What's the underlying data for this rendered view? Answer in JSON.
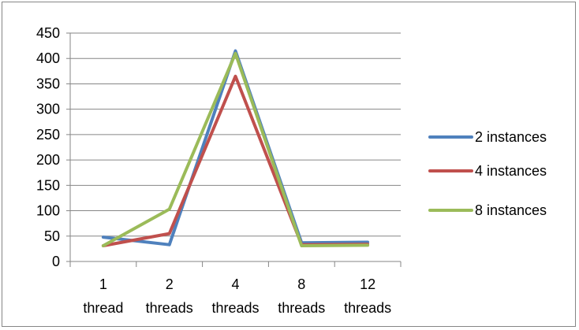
{
  "chart_data": {
    "type": "line",
    "title": "",
    "xlabel": "",
    "ylabel": "",
    "categories": [
      [
        "1",
        "thread"
      ],
      [
        "2",
        "threads"
      ],
      [
        "4",
        "threads"
      ],
      [
        "8",
        "threads"
      ],
      [
        "12",
        "threads"
      ]
    ],
    "ylim": [
      0,
      450
    ],
    "yticks": [
      0,
      50,
      100,
      150,
      200,
      250,
      300,
      350,
      400,
      450
    ],
    "grid": "horizontal major gridlines",
    "legend": "right",
    "series": [
      {
        "name": "2 instances",
        "color": "#4F81BD",
        "values": [
          48,
          33,
          415,
          37,
          38
        ]
      },
      {
        "name": "4 instances",
        "color": "#C0504D",
        "values": [
          31,
          55,
          365,
          33,
          34
        ]
      },
      {
        "name": "8 instances",
        "color": "#9BBB59",
        "values": [
          31,
          103,
          410,
          31,
          32
        ]
      }
    ]
  }
}
